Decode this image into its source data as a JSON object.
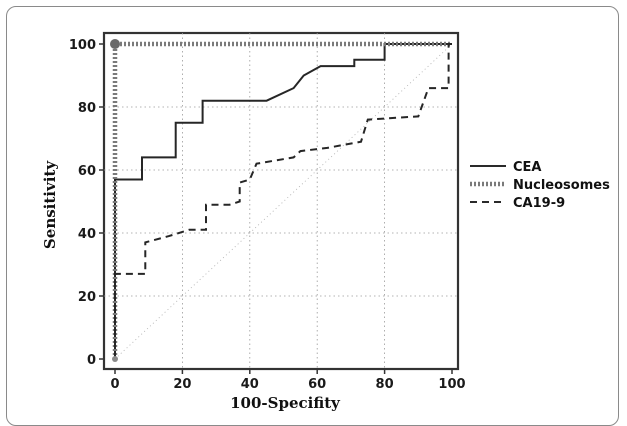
{
  "chart_data": {
    "type": "line",
    "xlabel": "100-Specifity",
    "ylabel": "Sensitivity",
    "xlim": [
      0,
      100
    ],
    "ylim": [
      0,
      100
    ],
    "x_ticks": [
      "0",
      "20",
      "40",
      "60",
      "80",
      "100"
    ],
    "y_ticks": [
      "0",
      "20",
      "40",
      "60",
      "80",
      "100"
    ],
    "grid": true,
    "legend_position": "right",
    "series": [
      {
        "name": "CEA",
        "style": "solid",
        "points": [
          [
            0,
            0
          ],
          [
            0,
            57
          ],
          [
            8,
            57
          ],
          [
            8,
            64
          ],
          [
            18,
            64
          ],
          [
            18,
            75
          ],
          [
            26,
            75
          ],
          [
            26,
            82
          ],
          [
            45,
            82
          ],
          [
            53,
            86
          ],
          [
            56,
            90
          ],
          [
            61,
            93
          ],
          [
            71,
            93
          ],
          [
            71,
            95
          ],
          [
            80,
            95
          ],
          [
            80,
            100
          ],
          [
            100,
            100
          ]
        ]
      },
      {
        "name": "Nucleosomes",
        "style": "thick-dotted",
        "points": [
          [
            0,
            0
          ],
          [
            0,
            100
          ],
          [
            100,
            100
          ]
        ]
      },
      {
        "name": "CA19-9",
        "style": "dashed",
        "points": [
          [
            0,
            0
          ],
          [
            0,
            27
          ],
          [
            9,
            27
          ],
          [
            9,
            37
          ],
          [
            16,
            39
          ],
          [
            22,
            41
          ],
          [
            27,
            41
          ],
          [
            27,
            49
          ],
          [
            34,
            49
          ],
          [
            37,
            50
          ],
          [
            37,
            56
          ],
          [
            40,
            57
          ],
          [
            42,
            62
          ],
          [
            53,
            64
          ],
          [
            55,
            66
          ],
          [
            63,
            67
          ],
          [
            73,
            69
          ],
          [
            75,
            76
          ],
          [
            90,
            77
          ],
          [
            93,
            86
          ],
          [
            99,
            86
          ],
          [
            99,
            100
          ],
          [
            100,
            100
          ]
        ]
      }
    ],
    "diagonal_reference": [
      [
        0,
        0
      ],
      [
        100,
        100
      ]
    ]
  }
}
